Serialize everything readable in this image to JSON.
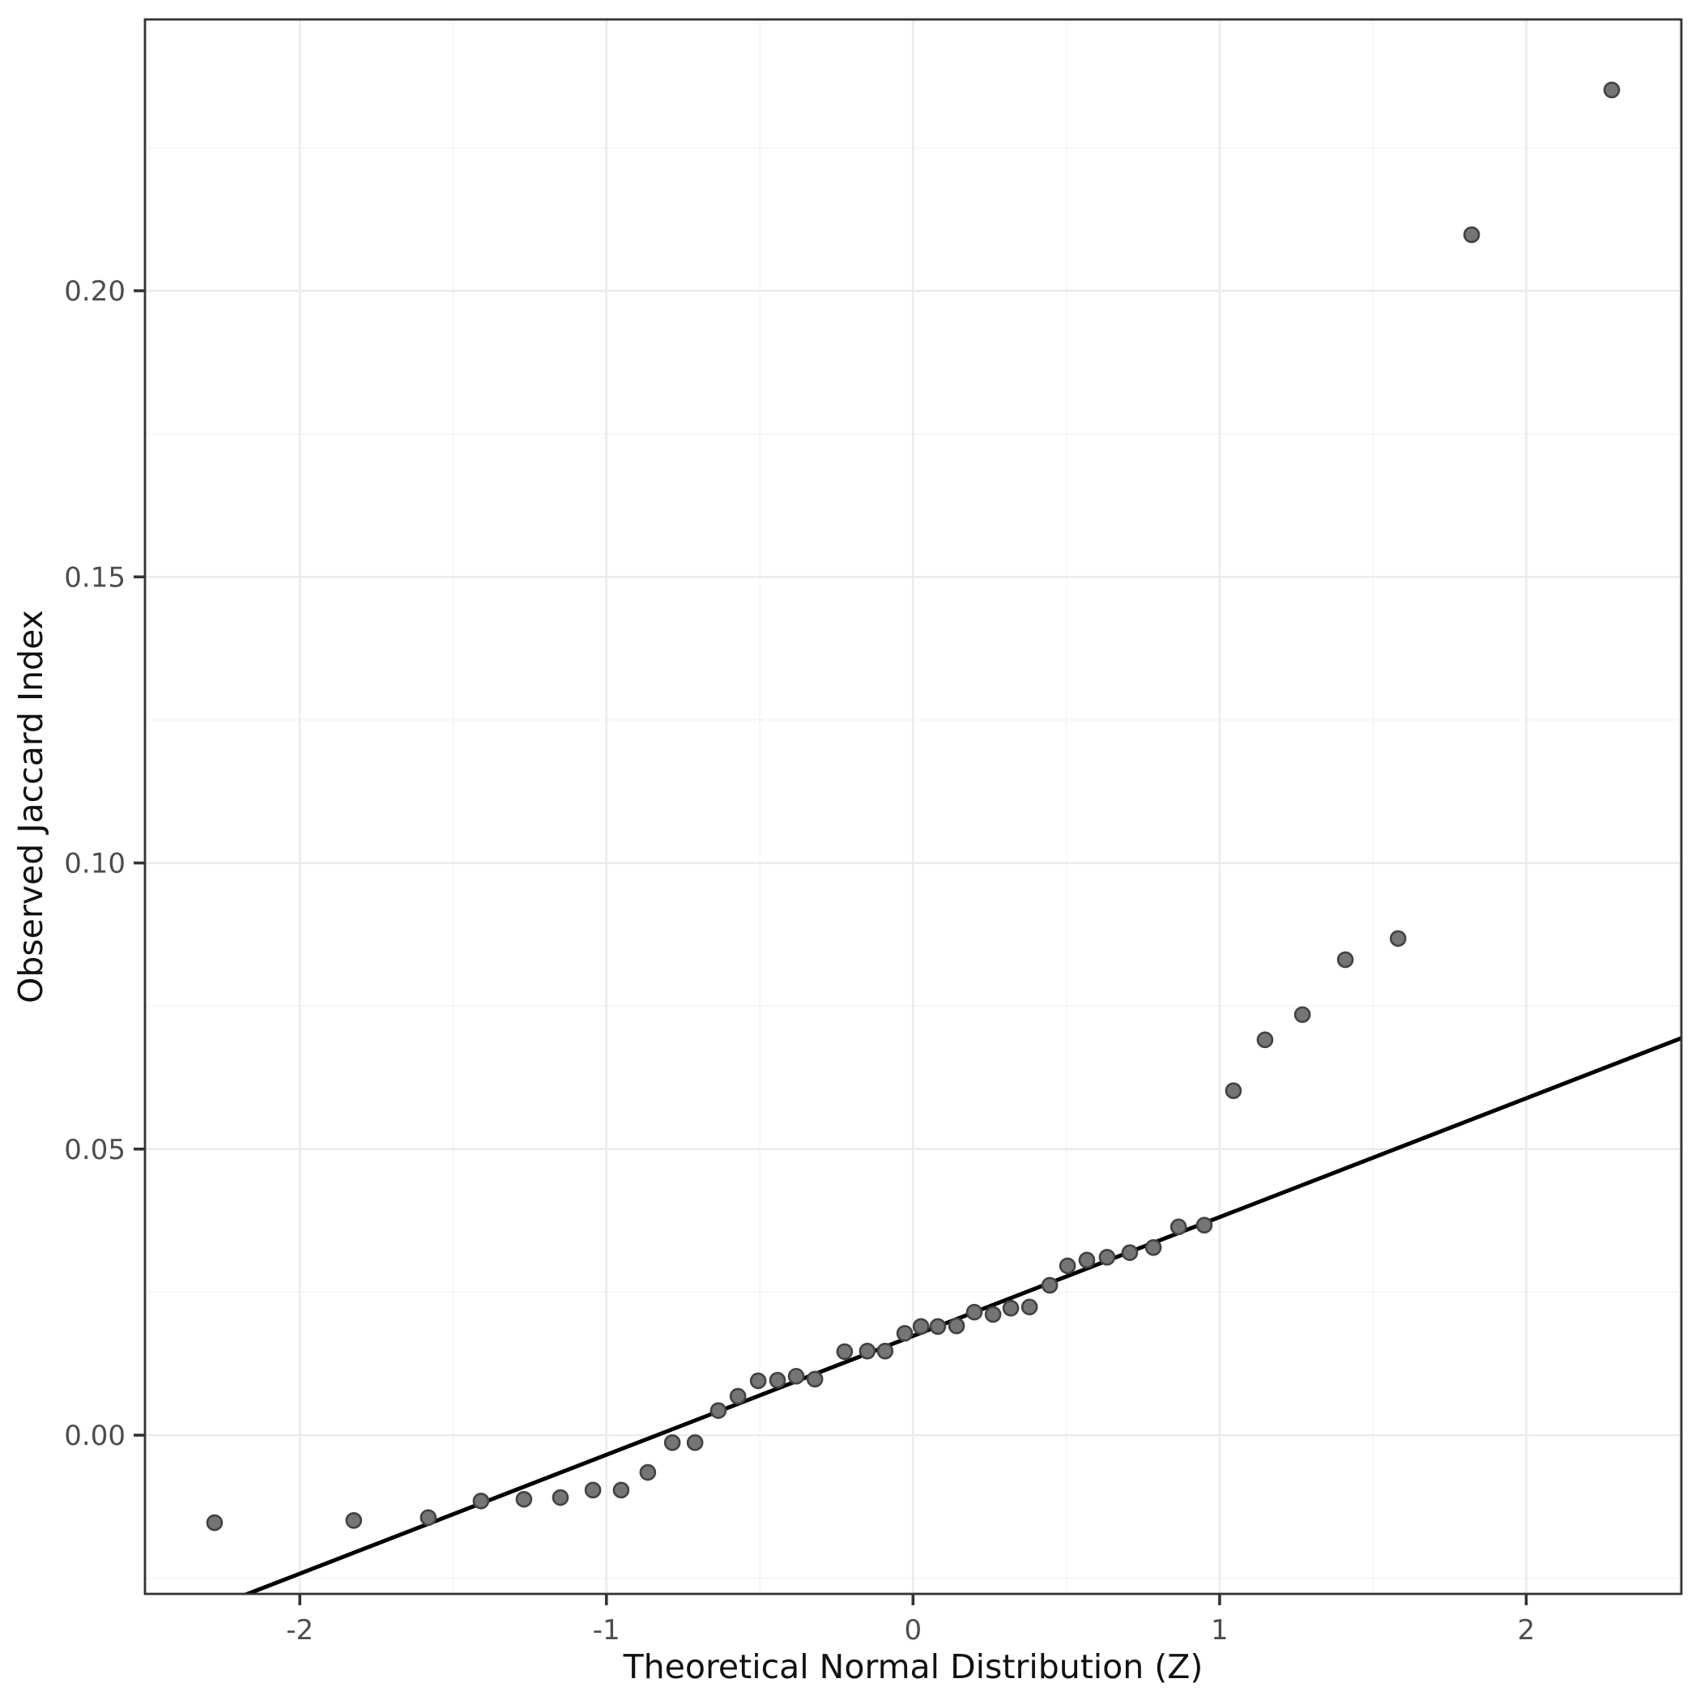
{
  "chart_data": {
    "type": "scatter",
    "title": "",
    "xlabel": "Theoretical Normal Distribution (Z)",
    "ylabel": "Observed Jaccard Index",
    "xlim": [
      -2.505,
      2.506
    ],
    "ylim": [
      -0.02774,
      0.24742
    ],
    "x_ticks": [
      {
        "v": -2,
        "label": "-2"
      },
      {
        "v": -1,
        "label": "-1"
      },
      {
        "v": 0,
        "label": "0"
      },
      {
        "v": 1,
        "label": "1"
      },
      {
        "v": 2,
        "label": "2"
      }
    ],
    "y_ticks": [
      {
        "v": 0.0,
        "label": "0.00"
      },
      {
        "v": 0.05,
        "label": "0.05"
      },
      {
        "v": 0.1,
        "label": "0.10"
      },
      {
        "v": 0.15,
        "label": "0.15"
      },
      {
        "v": 0.2,
        "label": "0.20"
      }
    ],
    "x_minor": [
      -2.5,
      -1.5,
      -0.5,
      0.5,
      1.5,
      2.5
    ],
    "y_minor": [
      -0.025,
      0.025,
      0.075,
      0.125,
      0.175,
      0.225
    ],
    "grid": true,
    "legend": false,
    "points": [
      [
        -2.278,
        -0.0153
      ],
      [
        -1.824,
        -0.0149
      ],
      [
        -1.581,
        -0.0144
      ],
      [
        -1.409,
        -0.0115
      ],
      [
        -1.269,
        -0.0112
      ],
      [
        -1.15,
        -0.0109
      ],
      [
        -1.044,
        -0.0096
      ],
      [
        -0.952,
        -0.0096
      ],
      [
        -0.865,
        -0.0065
      ],
      [
        -0.785,
        -0.0013
      ],
      [
        -0.711,
        -0.0013
      ],
      [
        -0.635,
        0.0043
      ],
      [
        -0.571,
        0.0068
      ],
      [
        -0.505,
        0.0095
      ],
      [
        -0.442,
        0.0096
      ],
      [
        -0.381,
        0.0103
      ],
      [
        -0.32,
        0.0098
      ],
      [
        -0.223,
        0.0146
      ],
      [
        -0.149,
        0.0147
      ],
      [
        -0.091,
        0.0147
      ],
      [
        -0.027,
        0.0178
      ],
      [
        0.026,
        0.019
      ],
      [
        0.081,
        0.019
      ],
      [
        0.142,
        0.0191
      ],
      [
        0.2,
        0.0215
      ],
      [
        0.261,
        0.0211
      ],
      [
        0.319,
        0.0222
      ],
      [
        0.38,
        0.0224
      ],
      [
        0.446,
        0.0262
      ],
      [
        0.504,
        0.0296
      ],
      [
        0.567,
        0.0306
      ],
      [
        0.633,
        0.0311
      ],
      [
        0.707,
        0.0319
      ],
      [
        0.784,
        0.0328
      ],
      [
        0.866,
        0.0364
      ],
      [
        0.95,
        0.0367
      ],
      [
        1.045,
        0.0602
      ],
      [
        1.148,
        0.0691
      ],
      [
        1.27,
        0.0735
      ],
      [
        1.41,
        0.0831
      ],
      [
        1.582,
        0.0868
      ],
      [
        1.822,
        0.2098
      ],
      [
        2.279,
        0.2351
      ]
    ],
    "qq_line": {
      "intercept": 0.01734,
      "slope": 0.02077
    }
  },
  "style": {
    "point_fill": "#757575",
    "point_stroke": "#424242",
    "line_color": "#000000",
    "major_grid": "#ebebeb",
    "minor_grid": "#f5f5f5",
    "panel_border": "#333333",
    "tick_color": "#333333",
    "tick_label_color": "#4d4d4d",
    "axis_title_color": "#111111",
    "background": "#ffffff"
  }
}
